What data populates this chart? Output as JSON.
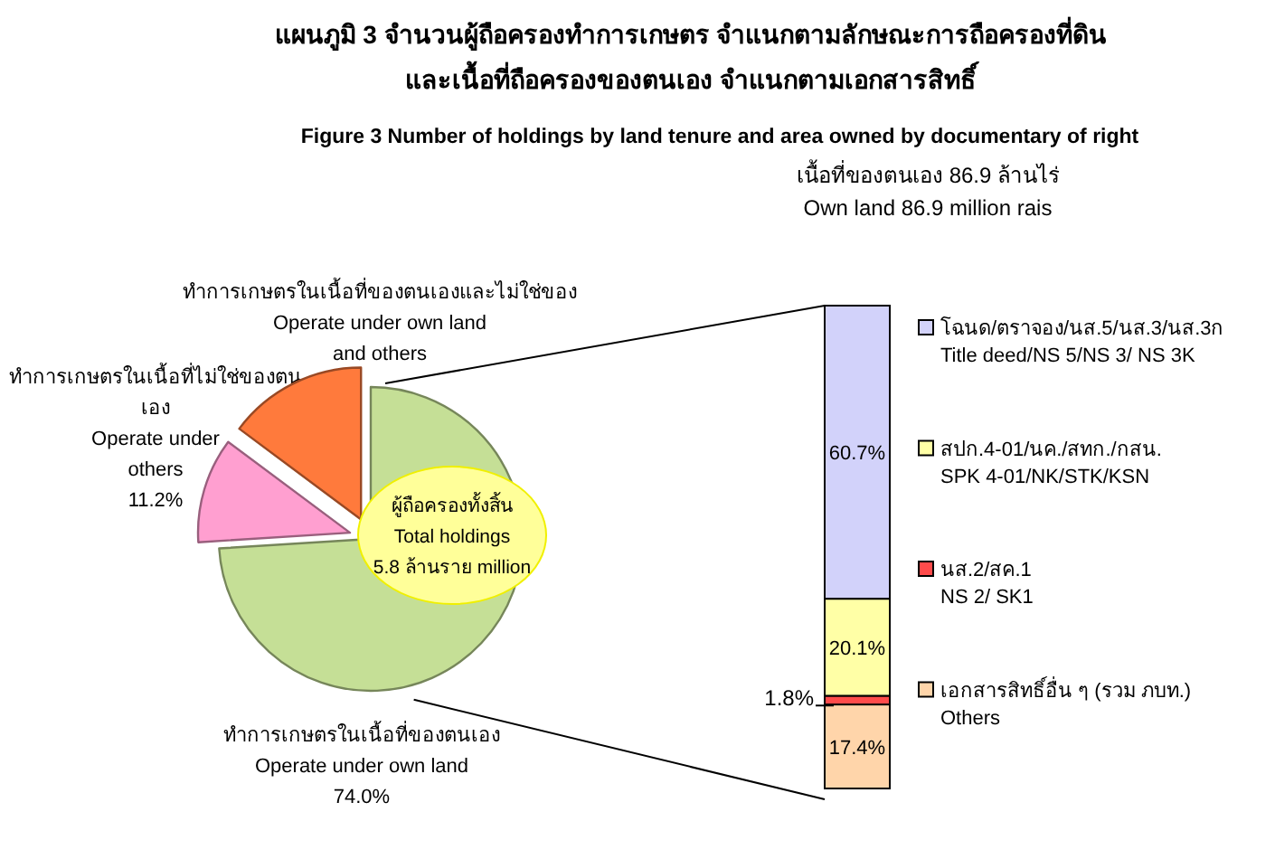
{
  "chart_data": [
    {
      "type": "pie",
      "title": "แผนภูมิ 3 จำนวนผู้ถือครองทำการเกษตร  จำแนกตามลักษณะการถือครองที่ดิน\nและเนื้อที่ถือครองของตนเอง  จำแนกตามเอกสารสิทธิ์",
      "subtitle": "Figure  3  Number of holdings by land tenure and area owned by documentary of right",
      "categories": [
        "ทำการเกษตรในเนื้อที่ของตนเอง\nOperate under own  land",
        "ทำการเกษตรในเนื้อที่ไม่ใช่ของตน\nเอง\nOperate under\nothers",
        "ทำการเกษตรในเนื้อที่ของตนเองและไม่ใช่ของ\nOperate under own land\nand others"
      ],
      "values": [
        74.0,
        11.2,
        14.8
      ],
      "value_labels": [
        "74.0%",
        "11.2%",
        null
      ],
      "colors": [
        "#c5df96",
        "#ff9fd0",
        "#ff7a3c"
      ],
      "annotations": [
        "ผู้ถือครองทั้งสิ้น\nTotal holdings\n5.8 ล้านราย  million"
      ]
    },
    {
      "type": "bar",
      "stacked": true,
      "title": "เนื้อที่ของตนเอง 86.9 ล้านไร่\nOwn land 86.9  million rais",
      "categories": [
        null
      ],
      "legend": "right",
      "series": [
        {
          "name": "เอกสารสิทธิ์อื่น ๆ (รวม ภบท.)\nOthers",
          "color": "#ffd5aa",
          "values": [
            17.4
          ],
          "value_labels": [
            "17.4%"
          ]
        },
        {
          "name": "นส.2/สค.1\nNS 2/ SK1",
          "color": "#ff4b4b",
          "values": [
            1.8
          ],
          "value_labels": [
            "1.8%"
          ]
        },
        {
          "name": "สปก.4-01/นค./สทก./กสน.\nSPK 4-01/NK/STK/KSN",
          "color": "#ffffa6",
          "values": [
            20.1
          ],
          "value_labels": [
            "20.1%"
          ]
        },
        {
          "name": "โฉนด/ตราจอง/นส.5/นส.3/นส.3ก\nTitle deed/NS 5/NS 3/ NS 3K",
          "color": "#d2d2fa",
          "values": [
            60.7
          ],
          "value_labels": [
            "60.7%"
          ]
        }
      ]
    }
  ]
}
